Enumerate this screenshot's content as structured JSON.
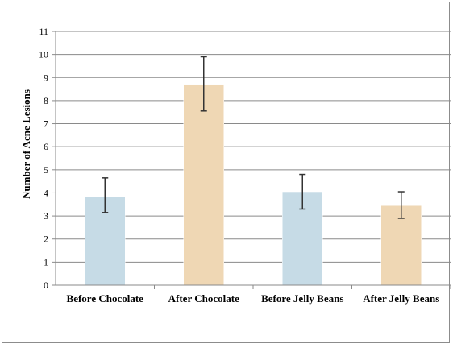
{
  "chart_data": {
    "type": "bar",
    "title": "",
    "xlabel": "",
    "ylabel": "Number of Acne Lesions",
    "categories": [
      "Before Chocolate",
      "After Chocolate",
      "Before Jelly Beans",
      "After Jelly Beans"
    ],
    "values": [
      3.85,
      8.7,
      4.05,
      3.45
    ],
    "error_low": [
      3.15,
      7.55,
      3.3,
      2.9
    ],
    "error_high": [
      4.65,
      9.9,
      4.8,
      4.05
    ],
    "bar_colors": [
      "#c6dbe6",
      "#efd7b4",
      "#c6dbe6",
      "#efd7b4"
    ],
    "ylim": [
      0,
      11
    ],
    "yticks": [
      "0",
      "1",
      "2",
      "3",
      "4",
      "5",
      "6",
      "7",
      "8",
      "9",
      "10",
      "11"
    ],
    "grid": true,
    "legend": "none"
  }
}
